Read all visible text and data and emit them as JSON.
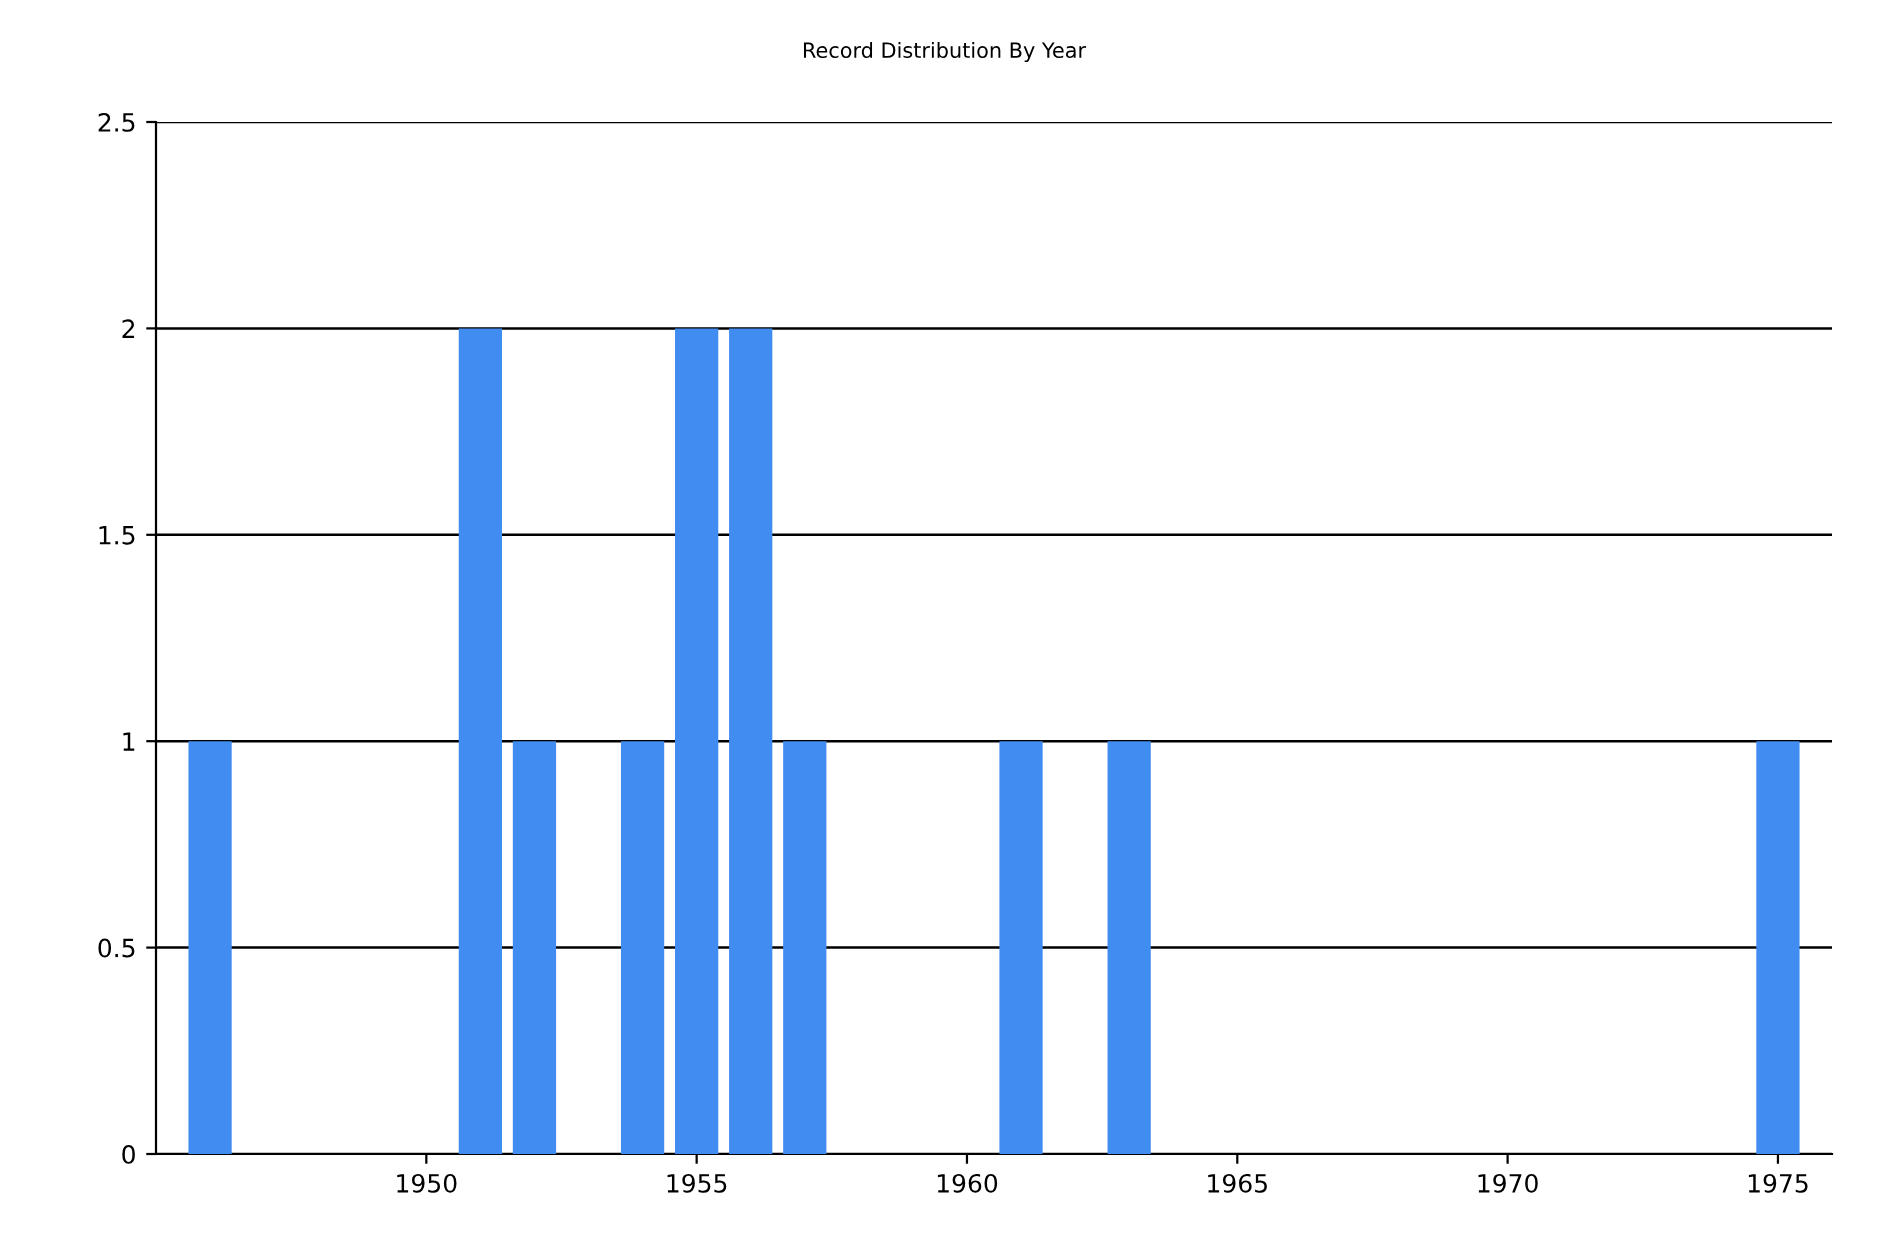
{
  "chart_data": {
    "type": "bar",
    "title": "Record Distribution By Year",
    "x": [
      1946,
      1951,
      1952,
      1954,
      1955,
      1956,
      1957,
      1961,
      1963,
      1975
    ],
    "values": [
      1,
      2,
      1,
      1,
      2,
      2,
      1,
      1,
      1,
      1
    ],
    "color": "#418cf0",
    "xlim": [
      1945,
      1976
    ],
    "xticks": [
      1950,
      1955,
      1960,
      1965,
      1970,
      1975
    ],
    "ylim": [
      0,
      2.5
    ],
    "yticks": [
      0,
      0.5,
      1,
      1.5,
      2,
      2.5
    ],
    "grid": "y"
  }
}
